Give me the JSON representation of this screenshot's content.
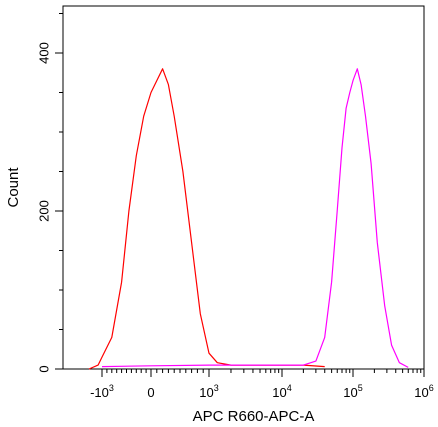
{
  "chart_data": {
    "type": "line",
    "title": "",
    "xlabel": "APC R660-APC-A",
    "ylabel": "Count",
    "x_scale": "biexponential",
    "xlim": [
      -4000,
      1000000
    ],
    "ylim": [
      0,
      450
    ],
    "grid": false,
    "legend": "none",
    "xticks": [
      {
        "value": -1000,
        "base": "-10",
        "exp": "3"
      },
      {
        "value": 0,
        "base": "0",
        "exp": ""
      },
      {
        "value": 1000,
        "base": "10",
        "exp": "3"
      },
      {
        "value": 10000,
        "base": "10",
        "exp": "4"
      },
      {
        "value": 100000,
        "base": "10",
        "exp": "5"
      },
      {
        "value": 1000000,
        "base": "10",
        "exp": "6"
      }
    ],
    "yticks": [
      {
        "value": 0,
        "label": "0"
      },
      {
        "value": 200,
        "label": "200"
      },
      {
        "value": 400,
        "label": "400"
      }
    ],
    "series": [
      {
        "color": "#ff0000",
        "x": [
          -2000,
          -1300,
          -1000,
          -800,
          -600,
          -450,
          -300,
          -150,
          0,
          100,
          200,
          300,
          400,
          550,
          700,
          850,
          1000,
          1300,
          2000,
          5000,
          20000,
          40000
        ],
        "y": [
          0,
          5,
          15,
          40,
          110,
          200,
          270,
          320,
          350,
          365,
          380,
          360,
          320,
          250,
          160,
          70,
          20,
          8,
          5,
          5,
          5,
          3
        ]
      },
      {
        "color": "#ff00ff",
        "x": [
          -1000,
          0,
          1000,
          10000,
          20000,
          30000,
          40000,
          50000,
          60000,
          70000,
          80000,
          90000,
          100000,
          115000,
          130000,
          150000,
          180000,
          220000,
          280000,
          350000,
          450000,
          600000
        ],
        "y": [
          3,
          4,
          5,
          5,
          5,
          10,
          40,
          110,
          200,
          280,
          330,
          350,
          365,
          380,
          360,
          320,
          260,
          160,
          80,
          30,
          8,
          2
        ]
      }
    ]
  }
}
